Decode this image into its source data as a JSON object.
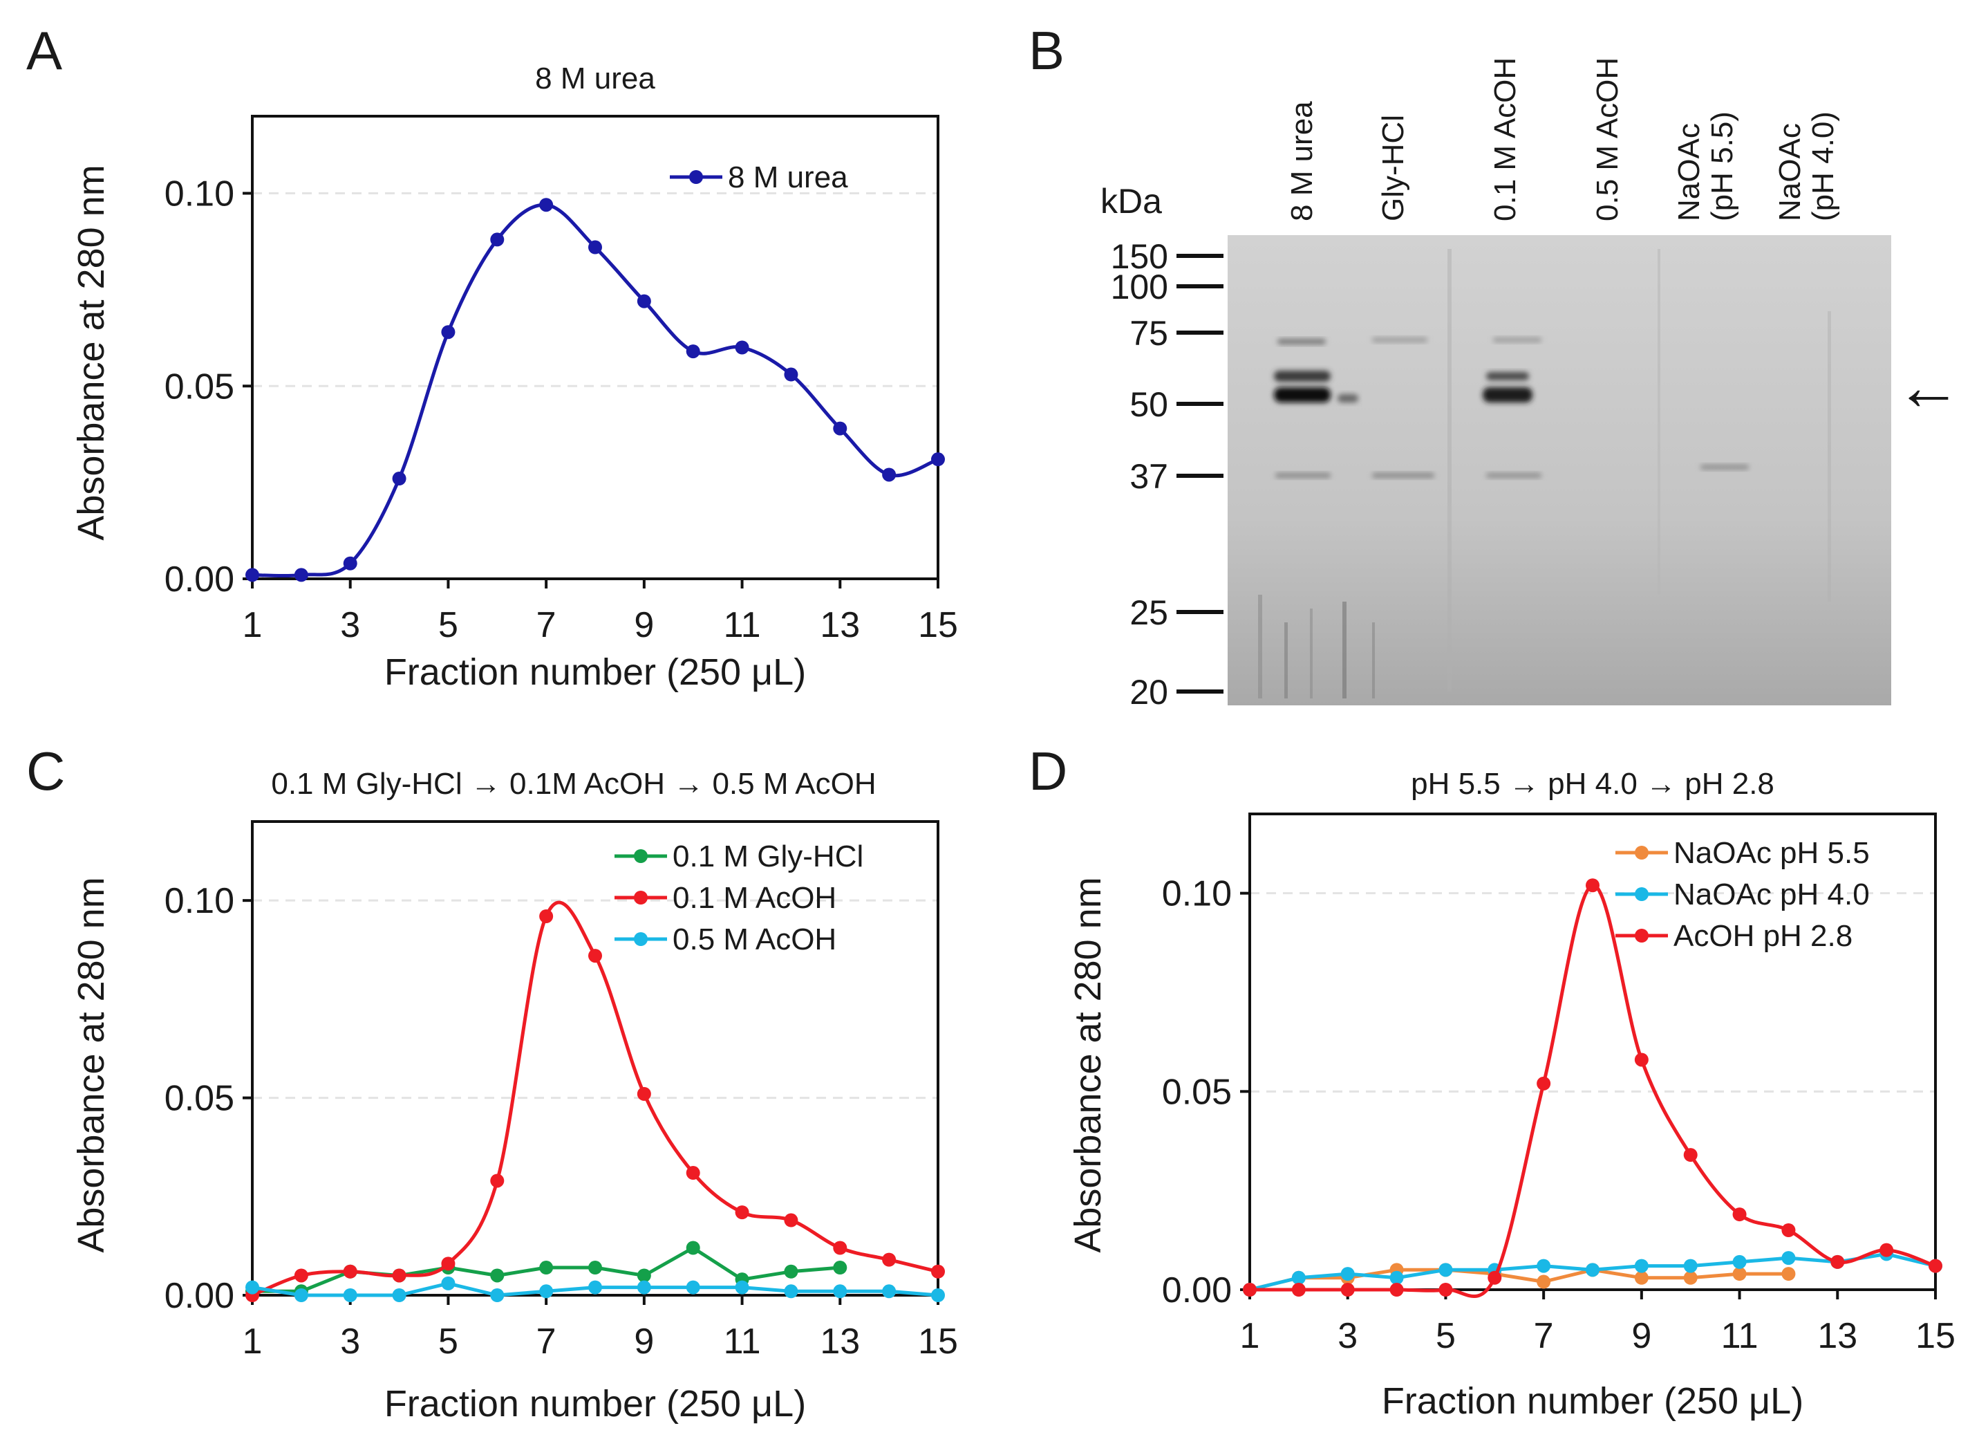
{
  "panel_letters": {
    "a": "A",
    "b": "B",
    "c": "C",
    "d": "D"
  },
  "colors": {
    "urea": "#1a1aa8",
    "gly": "#14a04a",
    "acoh01": "#ee1c24",
    "acoh05": "#1ab8e6",
    "naoac55": "#f08a3c",
    "naoac40": "#1ab8e6",
    "acoh28": "#ee1c24"
  },
  "chart_data": [
    {
      "id": "A",
      "type": "line",
      "title": "8 M urea",
      "xlabel": "Fraction number (250 μL)",
      "ylabel": "Absorbance at 280 nm",
      "xlim": [
        1,
        15
      ],
      "ylim": [
        0,
        0.12
      ],
      "xticks": [
        "1",
        "3",
        "5",
        "7",
        "9",
        "11",
        "13",
        "15"
      ],
      "yticks": [
        "0.00",
        "0.05",
        "0.10"
      ],
      "grid": "horizontal dashed",
      "legend": "top-right",
      "series": [
        {
          "name": "8 M urea",
          "color": "#1a1aa8",
          "x": [
            1,
            2,
            3,
            4,
            5,
            6,
            7,
            8,
            9,
            10,
            11,
            12,
            13,
            14,
            15
          ],
          "y": [
            0.001,
            0.001,
            0.004,
            0.026,
            0.064,
            0.088,
            0.097,
            0.086,
            0.072,
            0.059,
            0.06,
            0.053,
            0.039,
            0.027,
            0.031
          ]
        }
      ]
    },
    {
      "id": "C",
      "type": "line",
      "title": "0.1 M Gly-HCl  → 0.1M AcOH → 0.5 M AcOH",
      "xlabel": "Fraction number (250 μL)",
      "ylabel": "Absorbance at 280 nm",
      "xlim": [
        1,
        15
      ],
      "ylim": [
        0,
        0.12
      ],
      "xticks": [
        "1",
        "3",
        "5",
        "7",
        "9",
        "11",
        "13",
        "15"
      ],
      "yticks": [
        "0.00",
        "0.05",
        "0.10"
      ],
      "grid": "horizontal dashed",
      "legend": "top-right",
      "series": [
        {
          "name": "0.1 M Gly-HCl",
          "color": "#14a04a",
          "x": [
            1,
            2,
            3,
            4,
            5,
            6,
            7,
            8,
            9,
            10,
            11,
            12,
            13
          ],
          "y": [
            0.001,
            0.001,
            0.006,
            0.005,
            0.007,
            0.005,
            0.007,
            0.007,
            0.005,
            0.012,
            0.004,
            0.006,
            0.007
          ]
        },
        {
          "name": "0.1 M AcOH",
          "color": "#ee1c24",
          "x": [
            1,
            2,
            3,
            4,
            5,
            6,
            7,
            8,
            9,
            10,
            11,
            12,
            13,
            14,
            15
          ],
          "y": [
            0.0,
            0.005,
            0.006,
            0.005,
            0.008,
            0.029,
            0.096,
            0.086,
            0.051,
            0.031,
            0.021,
            0.019,
            0.012,
            0.009,
            0.006
          ]
        },
        {
          "name": "0.5 M AcOH",
          "color": "#1ab8e6",
          "x": [
            1,
            2,
            3,
            4,
            5,
            6,
            7,
            8,
            9,
            10,
            11,
            12,
            13,
            14,
            15
          ],
          "y": [
            0.002,
            0.0,
            0.0,
            0.0,
            0.003,
            0.0,
            0.001,
            0.002,
            0.002,
            0.002,
            0.002,
            0.001,
            0.001,
            0.001,
            0.0
          ]
        }
      ]
    },
    {
      "id": "D",
      "type": "line",
      "title": "pH 5.5 → pH 4.0 → pH 2.8",
      "xlabel": "Fraction number (250 μL)",
      "ylabel": "Absorbance at 280 nm",
      "xlim": [
        1,
        15
      ],
      "ylim": [
        0,
        0.12
      ],
      "xticks": [
        "1",
        "3",
        "5",
        "7",
        "9",
        "11",
        "13",
        "15"
      ],
      "yticks": [
        "0.00",
        "0.05",
        "0.10"
      ],
      "grid": "horizontal dashed",
      "legend": "top-right",
      "series": [
        {
          "name": "NaOAc pH 5.5",
          "color": "#f08a3c",
          "x": [
            1,
            2,
            3,
            4,
            5,
            6,
            7,
            8,
            9,
            10,
            11,
            12
          ],
          "y": [
            0.0,
            0.003,
            0.003,
            0.005,
            0.005,
            0.004,
            0.002,
            0.005,
            0.003,
            0.003,
            0.004,
            0.004
          ]
        },
        {
          "name": "NaOAc pH 4.0",
          "color": "#1ab8e6",
          "x": [
            1,
            2,
            3,
            4,
            5,
            6,
            7,
            8,
            9,
            10,
            11,
            12,
            13,
            14,
            15
          ],
          "y": [
            0.0,
            0.003,
            0.004,
            0.003,
            0.005,
            0.005,
            0.006,
            0.005,
            0.006,
            0.006,
            0.007,
            0.008,
            0.007,
            0.009,
            0.006
          ]
        },
        {
          "name": "AcOH pH 2.8",
          "color": "#ee1c24",
          "x": [
            1,
            2,
            3,
            4,
            5,
            6,
            7,
            8,
            9,
            10,
            11,
            12,
            13,
            14,
            15
          ],
          "y": [
            0.0,
            0.0,
            0.0,
            0.0,
            0.0,
            0.003,
            0.052,
            0.102,
            0.058,
            0.034,
            0.019,
            0.015,
            0.007,
            0.01,
            0.006
          ]
        }
      ]
    }
  ],
  "gel": {
    "kda_label": "kDa",
    "markers": [
      "150",
      "100",
      "75",
      "50",
      "37",
      "25",
      "20"
    ],
    "lanes": [
      "8 M urea",
      "Gly-HCl",
      "0.1 M AcOH",
      "0.5 M AcOH",
      "NaOAc\n(pH 5.5)",
      "NaOAc\n(pH 4.0)"
    ],
    "arrow": "←"
  }
}
